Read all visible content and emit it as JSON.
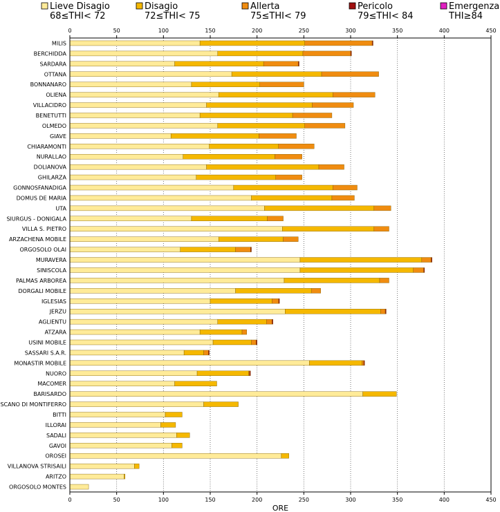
{
  "chart_data": {
    "type": "bar",
    "orientation": "horizontal",
    "stacked": true,
    "xlabel": "ORE",
    "xlim": [
      0,
      450
    ],
    "xticks": [
      0,
      50,
      100,
      150,
      200,
      250,
      300,
      350,
      400,
      450
    ],
    "grid": "vertical-dotted",
    "legend_position": "top",
    "legend": [
      {
        "name": "Lieve Disagio",
        "range": "68≤THI< 72",
        "color": "#ffeb99"
      },
      {
        "name": "Disagio",
        "range": "72≤THI< 75",
        "color": "#f5b800"
      },
      {
        "name": "Allerta",
        "range": "75≤THI< 79",
        "color": "#f08c10"
      },
      {
        "name": "Pericolo",
        "range": "79≤THI< 84",
        "color": "#a01010"
      },
      {
        "name": "Emergenza",
        "range": "THI≥84",
        "color": "#e020c0"
      }
    ],
    "categories": [
      "MILIS",
      "BERCHIDDA",
      "SARDARA",
      "OTTANA",
      "BONNANARO",
      "OLIENA",
      "VILLACIDRO",
      "BENETUTTI",
      "OLMEDO",
      "GIAVE",
      "CHIARAMONTI",
      "NURALLAO",
      "DOLIANOVA",
      "GHILARZA",
      "GONNOSFANADIGA",
      "DOMUS DE MARIA",
      "UTA",
      "SIURGUS - DONIGALA",
      "VILLA S. PIETRO",
      "ARZACHENA MOBILE",
      "ORGOSOLO OLAI",
      "MURAVERA",
      "SINISCOLA",
      "PALMAS ARBOREA",
      "DORGALI MOBILE",
      "IGLESIAS",
      "JERZU",
      "AGLIENTU",
      "ATZARA",
      "USINI MOBILE",
      "SASSARI S.A.R.",
      "MONASTIR MOBILE",
      "NUORO",
      "MACOMER",
      "BARISARDO",
      "SCANO DI MONTIFERRO",
      "BITTI",
      "ILLORAI",
      "SADALI",
      "GAVOI",
      "OROSEI",
      "VILLANOVA STRISAILI",
      "ARITZO",
      "ORGOSOLO MONTES"
    ],
    "series": [
      {
        "name": "Lieve Disagio",
        "values": [
          139,
          158,
          112,
          173,
          130,
          159,
          146,
          139,
          158,
          108,
          149,
          121,
          146,
          135,
          175,
          194,
          208,
          130,
          227,
          159,
          118,
          246,
          246,
          229,
          177,
          150,
          230,
          158,
          139,
          153,
          122,
          256,
          136,
          112,
          313,
          143,
          102,
          97,
          114,
          109,
          226,
          69,
          58,
          20
        ]
      },
      {
        "name": "Disagio",
        "values": [
          112,
          91,
          95,
          96,
          73,
          122,
          113,
          99,
          93,
          94,
          74,
          98,
          120,
          85,
          106,
          86,
          117,
          81,
          98,
          69,
          59,
          130,
          121,
          102,
          81,
          66,
          102,
          52,
          45,
          41,
          21,
          56,
          55,
          45,
          36,
          37,
          18,
          16,
          14,
          11,
          8,
          5,
          1,
          0
        ]
      },
      {
        "name": "Allerta",
        "values": [
          72,
          51,
          37,
          61,
          47,
          45,
          44,
          42,
          43,
          40,
          38,
          29,
          27,
          28,
          26,
          24,
          18,
          17,
          16,
          16,
          16,
          10,
          11,
          10,
          10,
          7,
          5,
          6,
          5,
          5,
          5,
          2,
          1,
          0,
          0,
          0,
          0,
          0,
          0,
          0,
          0,
          0,
          0,
          0
        ]
      },
      {
        "name": "Pericolo",
        "values": [
          1,
          1,
          1,
          0,
          0,
          0,
          0,
          0,
          0,
          0,
          0,
          0,
          0,
          0,
          0,
          0,
          0,
          0,
          0,
          0,
          1,
          1,
          1,
          0,
          0,
          1,
          1,
          1,
          0,
          1,
          1,
          1,
          1,
          0,
          0,
          0,
          0,
          0,
          0,
          0,
          0,
          0,
          0,
          0
        ]
      },
      {
        "name": "Emergenza",
        "values": [
          0,
          0,
          0,
          0,
          0,
          0,
          0,
          0,
          0,
          0,
          0,
          0,
          0,
          0,
          0,
          0,
          0,
          0,
          0,
          0,
          0,
          0,
          0,
          0,
          0,
          0,
          0,
          0,
          0,
          0,
          0,
          0,
          0,
          0,
          0,
          0,
          0,
          0,
          0,
          0,
          0,
          0,
          0,
          0
        ]
      }
    ]
  }
}
